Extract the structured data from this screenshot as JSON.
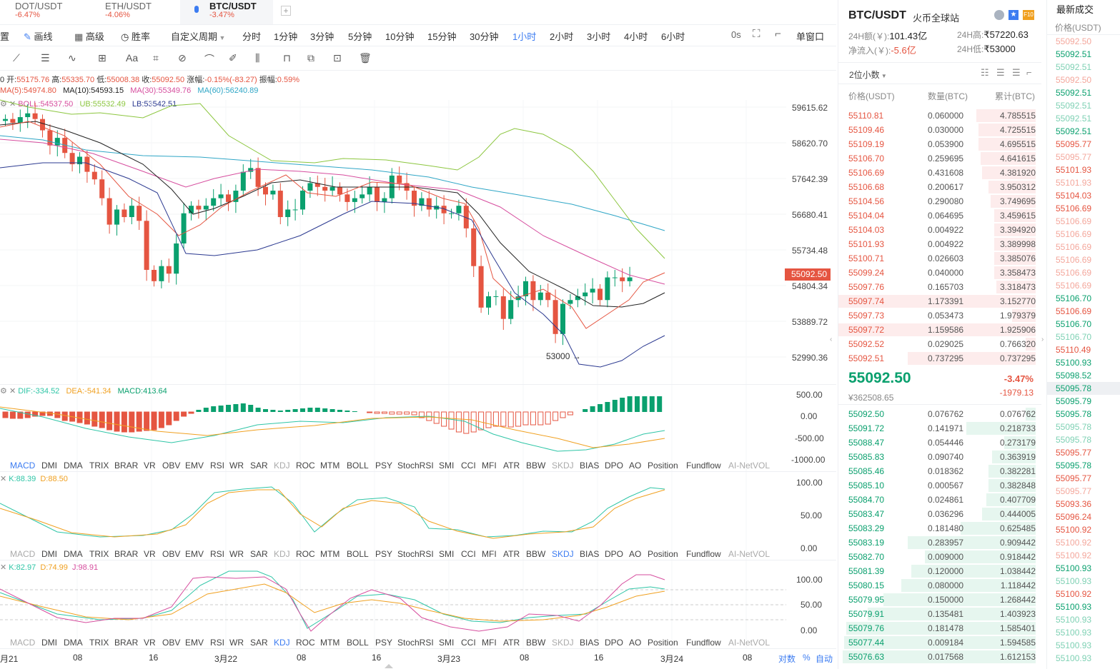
{
  "tabs": [
    {
      "name": "DOT/USDT",
      "change": "-6.47%"
    },
    {
      "name": "ETH/USDT",
      "change": "-4.06%"
    },
    {
      "name": "BTC/USDT",
      "change": "-3.47%"
    }
  ],
  "toolbar": {
    "settings": "置",
    "draw": "画线",
    "advanced": "高级",
    "win_rate": "胜率",
    "custom": "自定义周期",
    "periods": [
      "分时",
      "1分钟",
      "3分钟",
      "5分钟",
      "10分钟",
      "15分钟",
      "30分钟",
      "1小时",
      "2小时",
      "3小时",
      "4小时",
      "6小时"
    ],
    "active_period": "1小时",
    "timer": "0s",
    "single_window": "单窗口"
  },
  "ohlc": {
    "open_label": "0 开:",
    "open": "55175.76",
    "high_label": "高:",
    "high": "55335.70",
    "low_label": "低:",
    "low": "55008.38",
    "close_label": "收:",
    "close": "55092.50",
    "change_label": "涨幅:",
    "change": "-0.15%(-83.27)",
    "amp_label": "振幅:",
    "amp": "0.59%"
  },
  "ma": {
    "ma5": "MA(5):54974.80",
    "ma10": "MA(10):54593.15",
    "ma30": "MA(30):55349.76",
    "ma60": "MA(60):56240.89"
  },
  "boll": {
    "boll": "BOLL:54537.50",
    "ub": "UB:55532.49",
    "lb": "LB:53542.51"
  },
  "main_axis": [
    "59615.62",
    "58620.70",
    "57642.39",
    "56680.41",
    "55734.48",
    "54804.34",
    "53889.72",
    "52990.36"
  ],
  "current_price_tag": "55092.50",
  "low_annotation": "53000",
  "macd": {
    "dif": "DIF:-334.52",
    "dea": "DEA:-541.34",
    "macd": "MACD:413.64",
    "axis": [
      "500.00",
      "0.00",
      "-500.00",
      "-1000.00"
    ]
  },
  "indicator_list": [
    "MACD",
    "DMI",
    "DMA",
    "TRIX",
    "BRAR",
    "VR",
    "OBV",
    "EMV",
    "RSI",
    "WR",
    "SAR",
    "KDJ",
    "ROC",
    "MTM",
    "BOLL",
    "PSY",
    "StochRSI",
    "SMI",
    "CCI",
    "MFI",
    "ATR",
    "BBW",
    "SKDJ",
    "BIAS",
    "DPO",
    "AO",
    "Position",
    "Fundflow",
    "AI-NetVOL"
  ],
  "skdj": {
    "k": "K:88.39",
    "d": "D:88.50",
    "axis": [
      "100.00",
      "50.00",
      "0.00"
    ]
  },
  "kdj": {
    "k": "K:82.97",
    "d": "D:74.99",
    "j": "J:98.91",
    "axis": [
      "100.00",
      "50.00",
      "0.00"
    ]
  },
  "xaxis": [
    "月21",
    "08",
    "16",
    "3月22",
    "08",
    "16",
    "3月23",
    "08",
    "16",
    "3月24",
    "08"
  ],
  "axis_modes": {
    "log": "对数",
    "pct": "%",
    "auto": "自动"
  },
  "summary": {
    "pair": "BTC/USDT",
    "site": "火币全球站",
    "vol_label": "24H额(￥):",
    "vol": "101.43亿",
    "high_label": "24H高:",
    "high": "₹57220.63",
    "inflow_label": "净流入(￥):",
    "inflow": "-5.6亿",
    "low_label": "24H低:",
    "low": "₹53000"
  },
  "decimals": "2位小数",
  "book_headers": {
    "price": "价格(USDT)",
    "qty": "数量(BTC)",
    "total": "累计(BTC)"
  },
  "asks": [
    [
      "55110.81",
      "0.060000",
      "4.785515",
      0.3
    ],
    [
      "55109.46",
      "0.030000",
      "4.725515",
      0.29
    ],
    [
      "55109.19",
      "0.053900",
      "4.695515",
      0.29
    ],
    [
      "55106.70",
      "0.259695",
      "4.641615",
      0.28
    ],
    [
      "55106.69",
      "0.431608",
      "4.381920",
      0.27
    ],
    [
      "55106.68",
      "0.200617",
      "3.950312",
      0.24
    ],
    [
      "55104.56",
      "0.290080",
      "3.749695",
      0.23
    ],
    [
      "55104.04",
      "0.064695",
      "3.459615",
      0.21
    ],
    [
      "55104.03",
      "0.004922",
      "3.394920",
      0.21
    ],
    [
      "55101.93",
      "0.004922",
      "3.389998",
      0.21
    ],
    [
      "55100.71",
      "0.026603",
      "3.385076",
      0.21
    ],
    [
      "55099.24",
      "0.040000",
      "3.358473",
      0.21
    ],
    [
      "55097.76",
      "0.165703",
      "3.318473",
      0.2
    ],
    [
      "55097.74",
      "1.173391",
      "3.152770",
      1.0
    ],
    [
      "55097.73",
      "0.053473",
      "1.979379",
      0.12
    ],
    [
      "55097.72",
      "1.159586",
      "1.925906",
      1.0
    ],
    [
      "55092.52",
      "0.029025",
      "0.766320",
      0.05
    ],
    [
      "55092.51",
      "0.737295",
      "0.737295",
      0.65
    ]
  ],
  "last": {
    "price": "55092.50",
    "change": "-3.47%",
    "cny": "¥362508.65",
    "diff": "-1979.13"
  },
  "bids": [
    [
      "55092.50",
      "0.076762",
      "0.076762",
      0.05
    ],
    [
      "55091.72",
      "0.141971",
      "0.218733",
      0.35
    ],
    [
      "55088.47",
      "0.054446",
      "0.273179",
      0.16
    ],
    [
      "55085.83",
      "0.090740",
      "0.363919",
      0.22
    ],
    [
      "55085.46",
      "0.018362",
      "0.382281",
      0.24
    ],
    [
      "55085.10",
      "0.000567",
      "0.382848",
      0.24
    ],
    [
      "55084.70",
      "0.024861",
      "0.407709",
      0.25
    ],
    [
      "55083.47",
      "0.036296",
      "0.444005",
      0.27
    ],
    [
      "55083.29",
      "0.181480",
      "0.625485",
      0.38
    ],
    [
      "55083.19",
      "0.283957",
      "0.909442",
      0.65
    ],
    [
      "55082.70",
      "0.009000",
      "0.918442",
      0.56
    ],
    [
      "55081.39",
      "0.120000",
      "1.038442",
      0.63
    ],
    [
      "55080.15",
      "0.080000",
      "1.118442",
      0.68
    ],
    [
      "55079.95",
      "0.150000",
      "1.268442",
      0.77
    ],
    [
      "55079.91",
      "0.135481",
      "1.403923",
      0.85
    ],
    [
      "55079.76",
      "0.181478",
      "1.585401",
      0.96
    ],
    [
      "55077.44",
      "0.009184",
      "1.594585",
      0.97
    ],
    [
      "55076.63",
      "0.017568",
      "1.612153",
      0.98
    ]
  ],
  "trades_title": "最新成交",
  "trades_header": "价格(USDT)",
  "trades": [
    [
      "55092.50",
      "r",
      1
    ],
    [
      "55092.51",
      "g",
      0
    ],
    [
      "55092.51",
      "g",
      1
    ],
    [
      "55092.50",
      "r",
      1
    ],
    [
      "55092.51",
      "g",
      0
    ],
    [
      "55092.51",
      "g",
      1
    ],
    [
      "55092.51",
      "g",
      1
    ],
    [
      "55092.51",
      "g",
      0
    ],
    [
      "55095.77",
      "r",
      0
    ],
    [
      "55095.77",
      "r",
      1
    ],
    [
      "55101.93",
      "r",
      0
    ],
    [
      "55101.93",
      "r",
      1
    ],
    [
      "55104.03",
      "r",
      0
    ],
    [
      "55106.69",
      "r",
      0
    ],
    [
      "55106.69",
      "r",
      1
    ],
    [
      "55106.69",
      "r",
      1
    ],
    [
      "55106.69",
      "r",
      1
    ],
    [
      "55106.69",
      "r",
      1
    ],
    [
      "55106.69",
      "r",
      1
    ],
    [
      "55106.69",
      "r",
      1
    ],
    [
      "55106.70",
      "g",
      0
    ],
    [
      "55106.69",
      "r",
      0
    ],
    [
      "55106.70",
      "g",
      0
    ],
    [
      "55106.70",
      "g",
      1
    ],
    [
      "55110.49",
      "r",
      0
    ],
    [
      "55100.93",
      "g",
      0
    ],
    [
      "55098.52",
      "g",
      0
    ],
    [
      "55095.78",
      "g",
      2
    ],
    [
      "55095.79",
      "g",
      0
    ],
    [
      "55095.78",
      "g",
      0
    ],
    [
      "55095.78",
      "g",
      1
    ],
    [
      "55095.78",
      "g",
      1
    ],
    [
      "55095.77",
      "r",
      0
    ],
    [
      "55095.78",
      "g",
      0
    ],
    [
      "55095.77",
      "r",
      0
    ],
    [
      "55095.77",
      "r",
      1
    ],
    [
      "55093.36",
      "r",
      0
    ],
    [
      "55096.24",
      "r",
      0
    ],
    [
      "55100.92",
      "r",
      0
    ],
    [
      "55100.92",
      "r",
      1
    ],
    [
      "55100.92",
      "r",
      1
    ],
    [
      "55100.93",
      "g",
      0
    ],
    [
      "55100.93",
      "g",
      1
    ],
    [
      "55100.92",
      "r",
      0
    ],
    [
      "55100.93",
      "g",
      0
    ],
    [
      "55100.93",
      "g",
      1
    ],
    [
      "55100.93",
      "g",
      1
    ],
    [
      "55100.93",
      "g",
      1
    ],
    [
      "55100.93",
      "g",
      1
    ]
  ],
  "colors": {
    "up": "#0aa06e",
    "down": "#e55541",
    "blue": "#3c7cf1"
  }
}
